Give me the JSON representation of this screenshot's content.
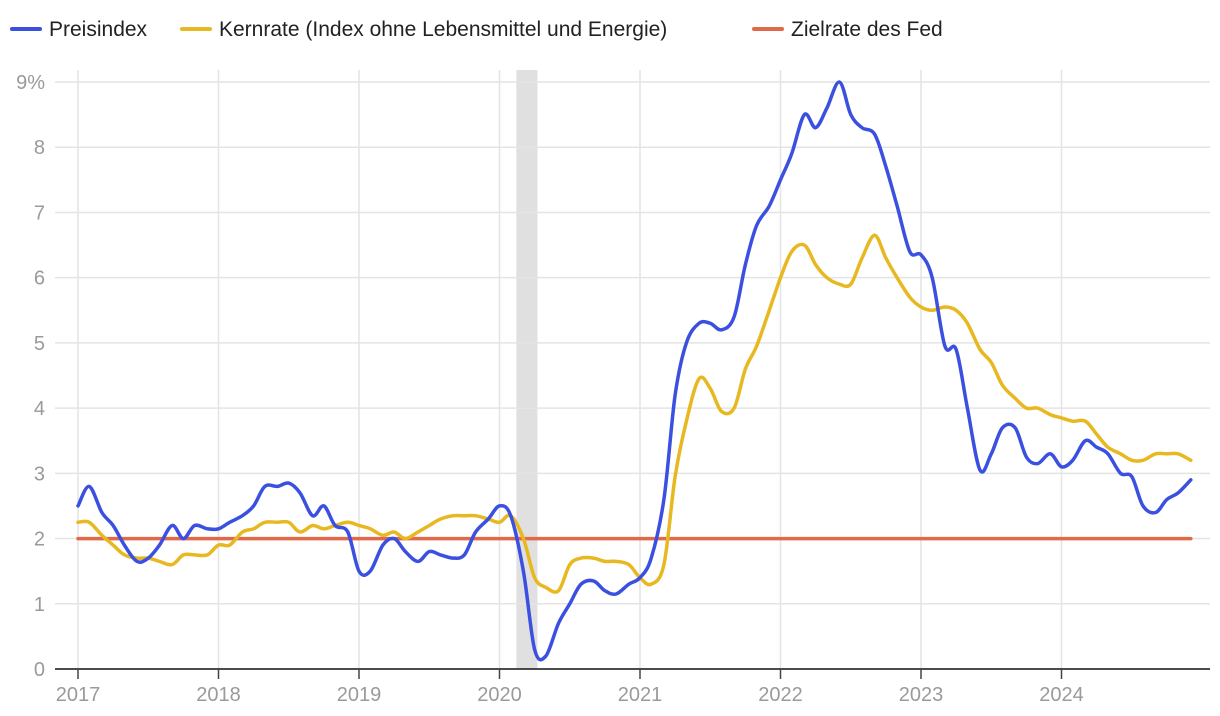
{
  "chart_data": {
    "type": "line",
    "title": "",
    "xlabel": "",
    "ylabel": "",
    "ylim": [
      0,
      9
    ],
    "xlim": [
      2017.0,
      2025.0
    ],
    "y_ticks": [
      {
        "value": 0,
        "label": "0"
      },
      {
        "value": 1,
        "label": "1"
      },
      {
        "value": 2,
        "label": "2"
      },
      {
        "value": 3,
        "label": "3"
      },
      {
        "value": 4,
        "label": "4"
      },
      {
        "value": 5,
        "label": "5"
      },
      {
        "value": 6,
        "label": "6"
      },
      {
        "value": 7,
        "label": "7"
      },
      {
        "value": 8,
        "label": "8"
      },
      {
        "value": 9,
        "label": "9%"
      }
    ],
    "x_ticks": [
      {
        "value": 2017,
        "label": "2017"
      },
      {
        "value": 2018,
        "label": "2018"
      },
      {
        "value": 2019,
        "label": "2019"
      },
      {
        "value": 2020,
        "label": "2020"
      },
      {
        "value": 2021,
        "label": "2021"
      },
      {
        "value": 2022,
        "label": "2022"
      },
      {
        "value": 2023,
        "label": "2023"
      },
      {
        "value": 2024,
        "label": "2024"
      }
    ],
    "shaded_regions": [
      {
        "name": "recession-2020",
        "x_start": 2020.12,
        "x_end": 2020.27,
        "color": "#e0e0e0"
      }
    ],
    "legend_position": "top-left",
    "series": [
      {
        "name": "Preisindex",
        "color": "#3b50e0",
        "points": [
          [
            2017.0,
            2.5
          ],
          [
            2017.08,
            2.8
          ],
          [
            2017.17,
            2.4
          ],
          [
            2017.25,
            2.2
          ],
          [
            2017.33,
            1.9
          ],
          [
            2017.42,
            1.65
          ],
          [
            2017.5,
            1.7
          ],
          [
            2017.58,
            1.9
          ],
          [
            2017.67,
            2.2
          ],
          [
            2017.75,
            2.0
          ],
          [
            2017.83,
            2.2
          ],
          [
            2017.92,
            2.15
          ],
          [
            2018.0,
            2.15
          ],
          [
            2018.08,
            2.25
          ],
          [
            2018.17,
            2.35
          ],
          [
            2018.25,
            2.5
          ],
          [
            2018.33,
            2.8
          ],
          [
            2018.42,
            2.8
          ],
          [
            2018.5,
            2.85
          ],
          [
            2018.58,
            2.7
          ],
          [
            2018.67,
            2.35
          ],
          [
            2018.75,
            2.5
          ],
          [
            2018.83,
            2.2
          ],
          [
            2018.92,
            2.1
          ],
          [
            2019.0,
            1.5
          ],
          [
            2019.08,
            1.5
          ],
          [
            2019.17,
            1.9
          ],
          [
            2019.25,
            2.0
          ],
          [
            2019.33,
            1.8
          ],
          [
            2019.42,
            1.65
          ],
          [
            2019.5,
            1.8
          ],
          [
            2019.58,
            1.75
          ],
          [
            2019.67,
            1.7
          ],
          [
            2019.75,
            1.75
          ],
          [
            2019.83,
            2.1
          ],
          [
            2019.92,
            2.3
          ],
          [
            2020.0,
            2.5
          ],
          [
            2020.08,
            2.35
          ],
          [
            2020.17,
            1.5
          ],
          [
            2020.25,
            0.3
          ],
          [
            2020.33,
            0.2
          ],
          [
            2020.42,
            0.7
          ],
          [
            2020.5,
            1.0
          ],
          [
            2020.58,
            1.3
          ],
          [
            2020.67,
            1.35
          ],
          [
            2020.75,
            1.2
          ],
          [
            2020.83,
            1.15
          ],
          [
            2020.92,
            1.3
          ],
          [
            2021.0,
            1.4
          ],
          [
            2021.08,
            1.7
          ],
          [
            2021.17,
            2.6
          ],
          [
            2021.25,
            4.2
          ],
          [
            2021.33,
            5.0
          ],
          [
            2021.42,
            5.3
          ],
          [
            2021.5,
            5.3
          ],
          [
            2021.58,
            5.2
          ],
          [
            2021.67,
            5.4
          ],
          [
            2021.75,
            6.2
          ],
          [
            2021.83,
            6.8
          ],
          [
            2021.92,
            7.1
          ],
          [
            2022.0,
            7.5
          ],
          [
            2022.08,
            7.9
          ],
          [
            2022.17,
            8.5
          ],
          [
            2022.25,
            8.3
          ],
          [
            2022.33,
            8.6
          ],
          [
            2022.42,
            9.0
          ],
          [
            2022.5,
            8.5
          ],
          [
            2022.58,
            8.3
          ],
          [
            2022.67,
            8.2
          ],
          [
            2022.75,
            7.7
          ],
          [
            2022.83,
            7.1
          ],
          [
            2022.92,
            6.4
          ],
          [
            2023.0,
            6.35
          ],
          [
            2023.08,
            6.0
          ],
          [
            2023.17,
            4.95
          ],
          [
            2023.25,
            4.9
          ],
          [
            2023.33,
            4.0
          ],
          [
            2023.42,
            3.05
          ],
          [
            2023.5,
            3.3
          ],
          [
            2023.58,
            3.7
          ],
          [
            2023.67,
            3.7
          ],
          [
            2023.75,
            3.25
          ],
          [
            2023.83,
            3.15
          ],
          [
            2023.92,
            3.3
          ],
          [
            2024.0,
            3.1
          ],
          [
            2024.08,
            3.2
          ],
          [
            2024.17,
            3.5
          ],
          [
            2024.25,
            3.4
          ],
          [
            2024.33,
            3.3
          ],
          [
            2024.42,
            3.0
          ],
          [
            2024.5,
            2.95
          ],
          [
            2024.58,
            2.5
          ],
          [
            2024.67,
            2.4
          ],
          [
            2024.75,
            2.6
          ],
          [
            2024.83,
            2.7
          ],
          [
            2024.92,
            2.9
          ]
        ]
      },
      {
        "name": "Kernrate (Index ohne Lebensmittel und Energie)",
        "color": "#e8b820",
        "points": [
          [
            2017.0,
            2.25
          ],
          [
            2017.08,
            2.25
          ],
          [
            2017.17,
            2.05
          ],
          [
            2017.25,
            1.9
          ],
          [
            2017.33,
            1.75
          ],
          [
            2017.42,
            1.7
          ],
          [
            2017.5,
            1.7
          ],
          [
            2017.58,
            1.65
          ],
          [
            2017.67,
            1.6
          ],
          [
            2017.75,
            1.75
          ],
          [
            2017.83,
            1.75
          ],
          [
            2017.92,
            1.75
          ],
          [
            2018.0,
            1.9
          ],
          [
            2018.08,
            1.9
          ],
          [
            2018.17,
            2.1
          ],
          [
            2018.25,
            2.15
          ],
          [
            2018.33,
            2.25
          ],
          [
            2018.42,
            2.25
          ],
          [
            2018.5,
            2.25
          ],
          [
            2018.58,
            2.1
          ],
          [
            2018.67,
            2.2
          ],
          [
            2018.75,
            2.15
          ],
          [
            2018.83,
            2.2
          ],
          [
            2018.92,
            2.25
          ],
          [
            2019.0,
            2.2
          ],
          [
            2019.08,
            2.15
          ],
          [
            2019.17,
            2.05
          ],
          [
            2019.25,
            2.1
          ],
          [
            2019.33,
            2.0
          ],
          [
            2019.42,
            2.1
          ],
          [
            2019.5,
            2.2
          ],
          [
            2019.58,
            2.3
          ],
          [
            2019.67,
            2.35
          ],
          [
            2019.75,
            2.35
          ],
          [
            2019.83,
            2.35
          ],
          [
            2019.92,
            2.3
          ],
          [
            2020.0,
            2.25
          ],
          [
            2020.08,
            2.35
          ],
          [
            2020.17,
            2.0
          ],
          [
            2020.25,
            1.4
          ],
          [
            2020.33,
            1.25
          ],
          [
            2020.42,
            1.2
          ],
          [
            2020.5,
            1.6
          ],
          [
            2020.58,
            1.7
          ],
          [
            2020.67,
            1.7
          ],
          [
            2020.75,
            1.65
          ],
          [
            2020.83,
            1.65
          ],
          [
            2020.92,
            1.6
          ],
          [
            2021.0,
            1.4
          ],
          [
            2021.08,
            1.3
          ],
          [
            2021.17,
            1.6
          ],
          [
            2021.25,
            2.95
          ],
          [
            2021.33,
            3.8
          ],
          [
            2021.42,
            4.45
          ],
          [
            2021.5,
            4.3
          ],
          [
            2021.58,
            3.95
          ],
          [
            2021.67,
            4.0
          ],
          [
            2021.75,
            4.6
          ],
          [
            2021.83,
            4.95
          ],
          [
            2021.92,
            5.5
          ],
          [
            2022.0,
            6.0
          ],
          [
            2022.08,
            6.4
          ],
          [
            2022.17,
            6.5
          ],
          [
            2022.25,
            6.2
          ],
          [
            2022.33,
            6.0
          ],
          [
            2022.42,
            5.9
          ],
          [
            2022.5,
            5.9
          ],
          [
            2022.58,
            6.3
          ],
          [
            2022.67,
            6.65
          ],
          [
            2022.75,
            6.3
          ],
          [
            2022.83,
            6.0
          ],
          [
            2022.92,
            5.7
          ],
          [
            2023.0,
            5.55
          ],
          [
            2023.08,
            5.5
          ],
          [
            2023.17,
            5.55
          ],
          [
            2023.25,
            5.5
          ],
          [
            2023.33,
            5.3
          ],
          [
            2023.42,
            4.9
          ],
          [
            2023.5,
            4.7
          ],
          [
            2023.58,
            4.35
          ],
          [
            2023.67,
            4.15
          ],
          [
            2023.75,
            4.0
          ],
          [
            2023.83,
            4.0
          ],
          [
            2023.92,
            3.9
          ],
          [
            2024.0,
            3.85
          ],
          [
            2024.08,
            3.8
          ],
          [
            2024.17,
            3.8
          ],
          [
            2024.25,
            3.6
          ],
          [
            2024.33,
            3.4
          ],
          [
            2024.42,
            3.3
          ],
          [
            2024.5,
            3.2
          ],
          [
            2024.58,
            3.2
          ],
          [
            2024.67,
            3.3
          ],
          [
            2024.75,
            3.3
          ],
          [
            2024.83,
            3.3
          ],
          [
            2024.92,
            3.2
          ]
        ]
      },
      {
        "name": "Zielrate des Fed",
        "color": "#e0694a",
        "points": [
          [
            2017.0,
            2.0
          ],
          [
            2024.92,
            2.0
          ]
        ]
      }
    ]
  }
}
